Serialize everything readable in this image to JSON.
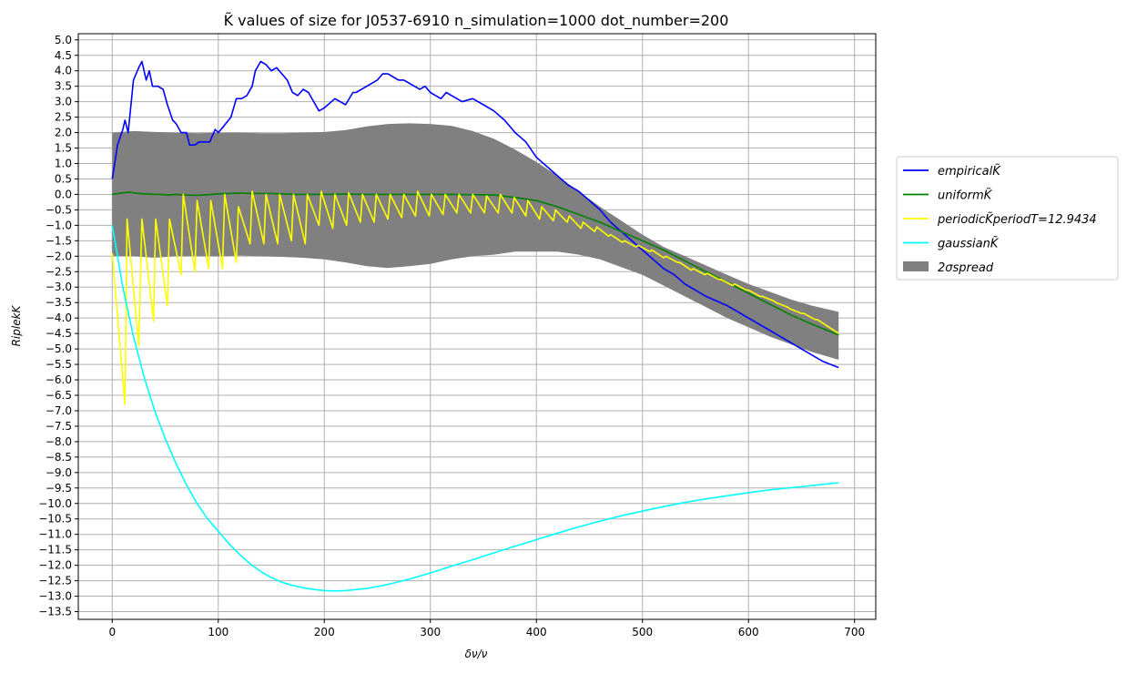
{
  "chart_data": {
    "type": "line",
    "title": "K̃ values of size for J0537-6910 n_simulation=1000 dot_number=200",
    "xlabel": "δν/ν",
    "ylabel": "RiplekK",
    "xlim": [
      -32,
      720
    ],
    "ylim": [
      -13.75,
      5.2
    ],
    "grid": true,
    "legend_position": "right",
    "x_ticks": [
      0,
      100,
      200,
      300,
      400,
      500,
      600,
      700
    ],
    "y_tick_step": 0.5,
    "y_tick_min": -13.5,
    "y_tick_max": 5.0,
    "series": [
      {
        "name": "empiricalK̃",
        "legend_label": "empiricalK̃",
        "color": "#0000ff",
        "x": [
          0,
          5,
          10,
          12,
          15,
          20,
          25,
          28,
          32,
          35,
          38,
          43,
          48,
          52,
          57,
          60,
          65,
          70,
          73,
          78,
          82,
          87,
          92,
          97,
          100,
          105,
          112,
          117,
          122,
          127,
          132,
          135,
          140,
          145,
          150,
          155,
          160,
          165,
          170,
          175,
          180,
          185,
          190,
          195,
          200,
          210,
          220,
          227,
          230,
          235,
          240,
          245,
          250,
          255,
          260,
          265,
          270,
          275,
          280,
          285,
          290,
          295,
          300,
          305,
          310,
          315,
          320,
          325,
          330,
          340,
          350,
          360,
          370,
          380,
          390,
          400,
          410,
          420,
          430,
          440,
          450,
          460,
          470,
          480,
          490,
          500,
          510,
          520,
          530,
          540,
          560,
          580,
          600,
          620,
          640,
          660,
          670,
          685
        ],
        "values": [
          0.5,
          1.6,
          2.1,
          2.4,
          2.0,
          3.7,
          4.1,
          4.3,
          3.7,
          4.0,
          3.5,
          3.5,
          3.4,
          2.9,
          2.4,
          2.3,
          2.0,
          2.0,
          1.6,
          1.6,
          1.7,
          1.7,
          1.7,
          2.1,
          2.0,
          2.2,
          2.5,
          3.1,
          3.1,
          3.2,
          3.5,
          4.0,
          4.3,
          4.2,
          4.0,
          4.1,
          3.9,
          3.7,
          3.3,
          3.2,
          3.4,
          3.3,
          3.0,
          2.7,
          2.8,
          3.1,
          2.9,
          3.3,
          3.3,
          3.4,
          3.5,
          3.6,
          3.7,
          3.9,
          3.9,
          3.8,
          3.7,
          3.7,
          3.6,
          3.5,
          3.4,
          3.5,
          3.3,
          3.2,
          3.1,
          3.3,
          3.2,
          3.1,
          3.0,
          3.1,
          2.9,
          2.7,
          2.4,
          2.0,
          1.7,
          1.2,
          0.9,
          0.6,
          0.3,
          0.1,
          -0.2,
          -0.5,
          -0.9,
          -1.2,
          -1.5,
          -1.8,
          -2.1,
          -2.4,
          -2.6,
          -2.9,
          -3.3,
          -3.6,
          -4.0,
          -4.4,
          -4.8,
          -5.2,
          -5.4,
          -5.6
        ]
      },
      {
        "name": "uniformK̃",
        "legend_label": "uniformK̃",
        "color": "#008000",
        "x": [
          0,
          10,
          15,
          20,
          25,
          30,
          35,
          40,
          45,
          50,
          55,
          60,
          70,
          80,
          90,
          100,
          110,
          120,
          130,
          140,
          150,
          160,
          170,
          180,
          190,
          200,
          220,
          240,
          260,
          280,
          300,
          320,
          340,
          360,
          380,
          400,
          420,
          440,
          460,
          480,
          500,
          520,
          540,
          560,
          580,
          600,
          620,
          640,
          660,
          685
        ],
        "values": [
          0.0,
          0.05,
          0.07,
          0.05,
          0.03,
          0.02,
          0.01,
          0.0,
          0.0,
          -0.01,
          -0.02,
          0.0,
          -0.02,
          -0.03,
          -0.01,
          0.02,
          0.03,
          0.04,
          0.03,
          0.03,
          0.03,
          0.02,
          0.0,
          0.0,
          0.0,
          0.0,
          0.01,
          0.0,
          0.0,
          0.0,
          0.0,
          0.0,
          -0.01,
          -0.02,
          -0.1,
          -0.2,
          -0.4,
          -0.65,
          -0.9,
          -1.2,
          -1.5,
          -1.8,
          -2.15,
          -2.5,
          -2.85,
          -3.2,
          -3.55,
          -3.9,
          -4.2,
          -4.55
        ]
      },
      {
        "name": "periodicK̃periodT=12.9434",
        "legend_label": "periodicK̃periodT=12.9434",
        "color": "#ffff00",
        "x": [
          0,
          12,
          14,
          25,
          28,
          39,
          41,
          52,
          54,
          65,
          67,
          78,
          80,
          91,
          93,
          104,
          106,
          117,
          119,
          130,
          132,
          143,
          145,
          156,
          158,
          169,
          171,
          182,
          184,
          195,
          197,
          208,
          210,
          221,
          223,
          234,
          236,
          247,
          249,
          260,
          262,
          273,
          275,
          286,
          288,
          299,
          301,
          312,
          314,
          325,
          327,
          338,
          340,
          351,
          353,
          364,
          366,
          377,
          379,
          390,
          392,
          403,
          405,
          416,
          418,
          429,
          431,
          442,
          444,
          455,
          457,
          468,
          470,
          481,
          483,
          494,
          496,
          507,
          509,
          520,
          522,
          533,
          535,
          546,
          548,
          559,
          561,
          572,
          574,
          585,
          587,
          598,
          600,
          611,
          613,
          624,
          626,
          637,
          639,
          650,
          652,
          663,
          665,
          685
        ],
        "values": [
          -1.9,
          -6.8,
          -0.8,
          -4.9,
          -0.8,
          -4.1,
          -0.8,
          -3.6,
          -0.8,
          -2.6,
          0.0,
          -2.5,
          -0.2,
          -2.4,
          -0.2,
          -2.4,
          0.0,
          -2.2,
          -0.4,
          -1.6,
          0.1,
          -1.6,
          0.0,
          -1.6,
          0.0,
          -1.5,
          0.0,
          -1.6,
          0.0,
          -1.0,
          0.1,
          -1.1,
          0.0,
          -1.0,
          0.05,
          -0.9,
          0.0,
          -0.9,
          0.0,
          -0.8,
          0.0,
          -0.75,
          0.0,
          -0.7,
          0.1,
          -0.7,
          0.0,
          -0.65,
          0.0,
          -0.6,
          0.0,
          -0.6,
          0.0,
          -0.6,
          -0.05,
          -0.6,
          0.0,
          -0.6,
          -0.1,
          -0.7,
          -0.2,
          -0.8,
          -0.4,
          -0.85,
          -0.5,
          -0.9,
          -0.7,
          -1.1,
          -0.9,
          -1.2,
          -1.05,
          -1.35,
          -1.3,
          -1.55,
          -1.5,
          -1.7,
          -1.65,
          -1.85,
          -1.8,
          -2.05,
          -2.0,
          -2.2,
          -2.2,
          -2.45,
          -2.4,
          -2.6,
          -2.55,
          -2.75,
          -2.75,
          -2.95,
          -2.9,
          -3.1,
          -3.1,
          -3.3,
          -3.3,
          -3.45,
          -3.5,
          -3.65,
          -3.7,
          -3.85,
          -3.85,
          -4.05,
          -4.05,
          -4.5
        ]
      },
      {
        "name": "gaussianK̃",
        "legend_label": "gaussianK̃",
        "color": "#00ffff",
        "x": [
          0,
          10,
          20,
          30,
          40,
          50,
          60,
          70,
          80,
          90,
          100,
          110,
          120,
          130,
          140,
          150,
          160,
          170,
          180,
          190,
          200,
          210,
          220,
          240,
          260,
          280,
          300,
          320,
          340,
          360,
          380,
          400,
          420,
          440,
          460,
          480,
          500,
          520,
          540,
          560,
          580,
          600,
          620,
          640,
          660,
          685
        ],
        "values": [
          -1.0,
          -3.0,
          -4.6,
          -5.9,
          -7.0,
          -7.9,
          -8.7,
          -9.4,
          -10.0,
          -10.5,
          -10.9,
          -11.3,
          -11.65,
          -11.95,
          -12.2,
          -12.4,
          -12.55,
          -12.65,
          -12.73,
          -12.78,
          -12.82,
          -12.83,
          -12.82,
          -12.75,
          -12.62,
          -12.45,
          -12.25,
          -12.03,
          -11.82,
          -11.6,
          -11.38,
          -11.17,
          -10.96,
          -10.76,
          -10.57,
          -10.4,
          -10.25,
          -10.1,
          -9.97,
          -9.85,
          -9.75,
          -9.65,
          -9.56,
          -9.49,
          -9.42,
          -9.33
        ]
      }
    ],
    "band": {
      "name": "2σspread",
      "legend_label": "2σspread",
      "color": "#808080",
      "x": [
        0,
        20,
        40,
        60,
        80,
        100,
        120,
        140,
        160,
        180,
        200,
        220,
        240,
        260,
        280,
        300,
        320,
        340,
        360,
        380,
        400,
        420,
        440,
        460,
        480,
        500,
        520,
        540,
        560,
        580,
        600,
        620,
        640,
        660,
        685
      ],
      "upper": [
        2.0,
        2.05,
        2.02,
        2.0,
        1.98,
        2.0,
        2.0,
        1.98,
        1.98,
        2.0,
        2.02,
        2.08,
        2.2,
        2.28,
        2.3,
        2.28,
        2.22,
        2.05,
        1.8,
        1.45,
        1.05,
        0.6,
        0.1,
        -0.4,
        -0.85,
        -1.3,
        -1.7,
        -2.0,
        -2.3,
        -2.6,
        -2.9,
        -3.15,
        -3.4,
        -3.6,
        -3.8
      ],
      "lower": [
        -2.0,
        -2.0,
        -2.05,
        -2.0,
        -2.0,
        -2.0,
        -1.98,
        -2.0,
        -2.02,
        -2.05,
        -2.1,
        -2.2,
        -2.32,
        -2.38,
        -2.32,
        -2.25,
        -2.1,
        -2.0,
        -1.95,
        -1.85,
        -1.85,
        -1.85,
        -1.95,
        -2.1,
        -2.35,
        -2.6,
        -2.95,
        -3.3,
        -3.65,
        -4.0,
        -4.3,
        -4.6,
        -4.85,
        -5.1,
        -5.35
      ]
    }
  }
}
